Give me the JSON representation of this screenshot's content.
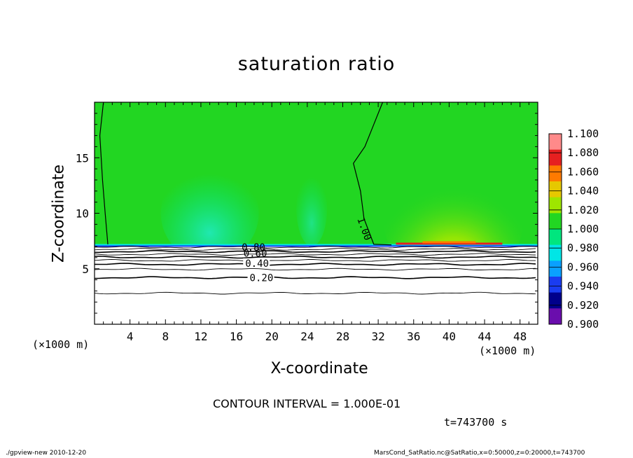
{
  "chart_data": {
    "type": "heatmap",
    "title": "saturation ratio",
    "xlabel": "X-coordinate",
    "ylabel": "Z-coordinate",
    "x_unit_label": "(×1000 m)",
    "xlim": [
      0,
      50
    ],
    "ylim": [
      0,
      20
    ],
    "x_ticks": [
      "4",
      "8",
      "12",
      "16",
      "20",
      "24",
      "28",
      "32",
      "36",
      "40",
      "44",
      "48"
    ],
    "y_ticks": [
      "5",
      "10",
      "15"
    ],
    "colorbar": {
      "levels": [
        "0.900",
        "0.920",
        "0.940",
        "0.960",
        "0.980",
        "1.000",
        "1.020",
        "1.040",
        "1.060",
        "1.080",
        "1.100"
      ],
      "colors": [
        "#6a0dad",
        "#00008b",
        "#1a3cf0",
        "#0aa0ff",
        "#00e6e6",
        "#00e67e",
        "#22d622",
        "#9ee600",
        "#e6c800",
        "#ff7a00",
        "#e62020",
        "#ff8a8a"
      ]
    },
    "contour_labels": [
      {
        "text": "0.20",
        "value": 0.2
      },
      {
        "text": "0.40",
        "value": 0.4
      },
      {
        "text": "0.60",
        "value": 0.6
      },
      {
        "text": "0.80",
        "value": 0.8
      },
      {
        "text": "1.00",
        "value": 1.0
      }
    ],
    "contour_lines_z": [
      2.8,
      4.2,
      4.95,
      5.4,
      5.75,
      6.05,
      6.3,
      6.55,
      6.75,
      6.95
    ],
    "saturation_top_z": 7.1
  },
  "text": {
    "contour_interval": "CONTOUR INTERVAL = 1.000E-01",
    "time": "t=743700 s",
    "footer_left": "./gpview-new   2010-12-20",
    "footer_right": "MarsCond_SatRatio.nc@SatRatio,x=0:50000,z=0:20000,t=743700"
  }
}
